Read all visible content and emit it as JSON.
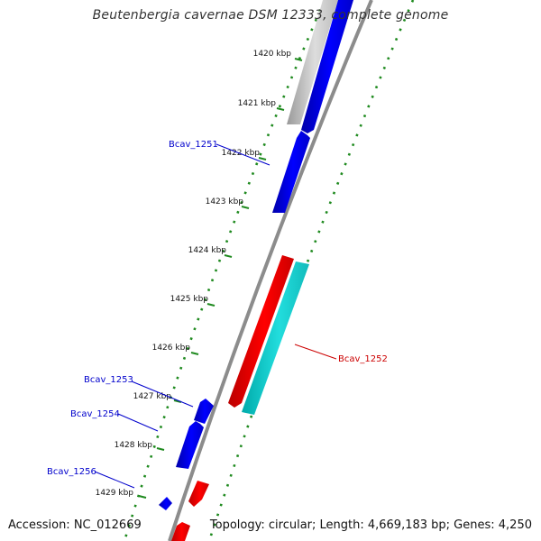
{
  "title": "Beutenbergia cavernae DSM 12333, complete genome",
  "footer": {
    "accession": "Accession: NC_012669",
    "info": "Topology: circular; Length: 4,669,183 bp; Genes: 4,250"
  },
  "colors": {
    "background": "#ffffff",
    "backbone": "#8c8c8c",
    "tick": "#1f8a1f",
    "gene_forward_blue": "#0000ee",
    "gene_reverse_red": "#ee0000",
    "gene_cyan": "#11cccc",
    "gene_grey": "#bbbbbb",
    "label_blue": "#0000cc",
    "label_red": "#cc0000"
  },
  "ruler": {
    "unit": "kbp",
    "ticks": [
      "1420 kbp",
      "1421 kbp",
      "1422 kbp",
      "1423 kbp",
      "1424 kbp",
      "1425 kbp",
      "1426 kbp",
      "1427 kbp",
      "1428 kbp",
      "1429 kbp"
    ]
  },
  "gene_labels": [
    {
      "name": "Bcav_1251",
      "color": "label_blue"
    },
    {
      "name": "Bcav_1252",
      "color": "label_red"
    },
    {
      "name": "Bcav_1253",
      "color": "label_blue"
    },
    {
      "name": "Bcav_1254",
      "color": "label_blue"
    },
    {
      "name": "Bcav_1256",
      "color": "label_blue"
    }
  ]
}
